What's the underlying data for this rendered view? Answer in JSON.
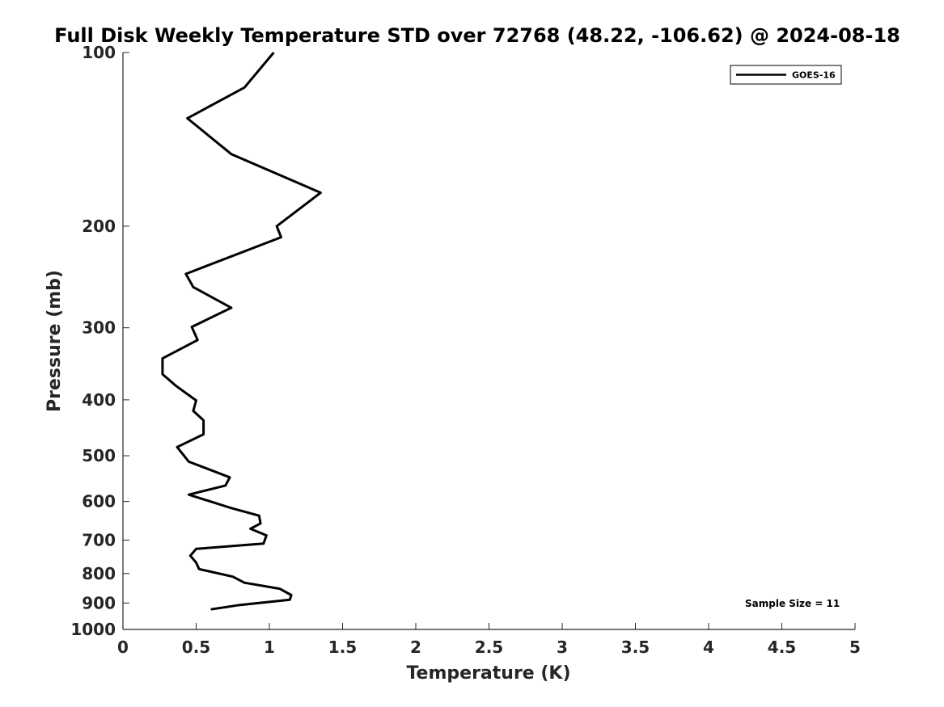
{
  "chart_data": {
    "type": "line",
    "title": "Full Disk Weekly Temperature STD over 72768 (48.22, -106.62) @ 2024-08-18",
    "xlabel": "Temperature (K)",
    "ylabel": "Pressure (mb)",
    "xlim": [
      0,
      5
    ],
    "ylim": [
      100,
      1000
    ],
    "y_scale": "log",
    "y_reversed": true,
    "x_ticks": [
      0,
      0.5,
      1,
      1.5,
      2,
      2.5,
      3,
      3.5,
      4,
      4.5,
      5
    ],
    "x_tick_labels": [
      "0",
      "0.5",
      "1",
      "1.5",
      "2",
      "2.5",
      "3",
      "3.5",
      "4",
      "4.5",
      "5"
    ],
    "y_ticks": [
      100,
      200,
      300,
      400,
      500,
      600,
      700,
      800,
      900,
      1000
    ],
    "y_tick_labels": [
      "100",
      "200",
      "300",
      "400",
      "500",
      "600",
      "700",
      "800",
      "900",
      "1000"
    ],
    "grid": false,
    "legend_position": "top-right",
    "annotation": "Sample Size = 11",
    "series": [
      {
        "name": "GOES-16",
        "color": "#000000",
        "x": [
          1.03,
          0.83,
          0.44,
          0.74,
          1.35,
          1.05,
          1.08,
          0.43,
          0.48,
          0.74,
          0.47,
          0.51,
          0.27,
          0.27,
          0.36,
          0.5,
          0.48,
          0.55,
          0.55,
          0.37,
          0.45,
          0.73,
          0.7,
          0.45,
          0.74,
          0.93,
          0.94,
          0.87,
          0.98,
          0.96,
          0.5,
          0.46,
          0.5,
          0.52,
          0.75,
          0.83,
          1.07,
          1.15,
          1.14,
          0.8,
          0.6
        ],
        "y": [
          100,
          115,
          130,
          150,
          175,
          200,
          209,
          242,
          255,
          277,
          299,
          315,
          339,
          361,
          378,
          401,
          418,
          434,
          459,
          483,
          512,
          545,
          563,
          584,
          616,
          635,
          655,
          669,
          687,
          710,
          725,
          745,
          766,
          786,
          810,
          830,
          850,
          872,
          888,
          907,
          923
        ]
      }
    ]
  }
}
